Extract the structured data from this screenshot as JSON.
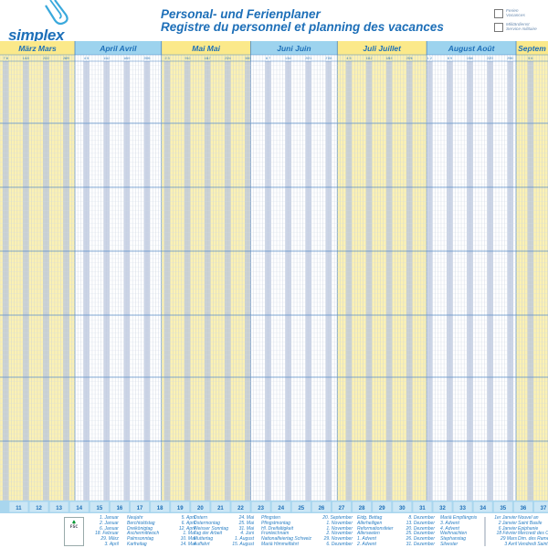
{
  "brand": {
    "name": "simplex",
    "icon": "paperclip-icon"
  },
  "title": {
    "line1": "Personal- und Ferienplaner",
    "line2": "Registre du personnel et planning des vacances"
  },
  "legend": [
    {
      "label1": "Ferien",
      "label2": "Vacances"
    },
    {
      "label1": "Militärdienst",
      "label2": "Service militaire"
    }
  ],
  "colors": {
    "accent": "#1d6fb8",
    "yellow": "#fbf1b4",
    "yellow_header": "#fbe98a",
    "blue_header": "#9dd3ee",
    "weekend": "#b9c6de",
    "week_row": "#a9d6ee"
  },
  "calendar": {
    "year": 2015,
    "months": [
      {
        "label": "März  Mars",
        "color": "yellow",
        "days": [
          "7",
          "8",
          "14",
          "15",
          "21",
          "22",
          "28",
          "29"
        ]
      },
      {
        "label": "April  Avril",
        "color": "white",
        "days": [
          "4",
          "5",
          "11",
          "12",
          "18",
          "19",
          "25",
          "26"
        ]
      },
      {
        "label": "Mai  Mai",
        "color": "yellow",
        "days": [
          "2",
          "3",
          "9",
          "10",
          "16",
          "17",
          "23",
          "24",
          "30",
          "31"
        ]
      },
      {
        "label": "Juni  Juin",
        "color": "white",
        "days": [
          "6",
          "7",
          "13",
          "14",
          "20",
          "21",
          "27",
          "28"
        ]
      },
      {
        "label": "Juli  Juillet",
        "color": "yellow",
        "days": [
          "4",
          "5",
          "11",
          "12",
          "18",
          "19",
          "25",
          "26"
        ]
      },
      {
        "label": "August  Août",
        "color": "white",
        "days": [
          "1",
          "2",
          "8",
          "9",
          "15",
          "16",
          "22",
          "23",
          "29",
          "30"
        ]
      },
      {
        "label": "Septem",
        "color": "yellow",
        "days": [
          "5",
          "6"
        ]
      }
    ],
    "weeks": [
      "11",
      "12",
      "13",
      "14",
      "15",
      "16",
      "17",
      "18",
      "19",
      "20",
      "21",
      "22",
      "23",
      "24",
      "25",
      "26",
      "27",
      "28",
      "29",
      "30",
      "31",
      "32",
      "33",
      "34",
      "35",
      "36",
      "37"
    ]
  },
  "fsc": {
    "logo_text": "FSC"
  },
  "holidays": {
    "col1_dates": [
      "1. Januar",
      "2. Januar",
      "6. Januar",
      "18. Februar",
      "29. März",
      "3. April"
    ],
    "col1_names": [
      "Neujahr",
      "Berchtoldstag",
      "Dreikönigtag",
      "Aschermittwoch",
      "Palmsonntag",
      "Karfreitag"
    ],
    "col2_dates": [
      "5. April",
      "6. April",
      "12. April",
      "1. Mai",
      "10. Mai",
      "14. Mai"
    ],
    "col2_names": [
      "Ostern",
      "Ostermontag",
      "Weisser Sonntag",
      "Tag der Arbeit",
      "Muttertag",
      "Auffahrt"
    ],
    "col3_dates": [
      "24. Mai",
      "25. Mai",
      "31. Mai",
      "4. Juni",
      "1. August",
      "15. August"
    ],
    "col3_names": [
      "Pfingsten",
      "Pfingstmontag",
      "Hl. Dreifaltigkeit",
      "Fronleichnam",
      "Nationalfeiertag Schweiz",
      "Mariä Himmelfahrt"
    ],
    "col4_dates": [
      "20. September",
      "1. November",
      "1. November",
      "2. November",
      "29. November",
      "6. Dezember"
    ],
    "col4_names": [
      "Eidg. Bettag",
      "Allerheiligen",
      "Reformationsfeier",
      "Allerseelen",
      "1. Advent",
      "2. Advent"
    ],
    "col5_dates": [
      "8. Dezember",
      "13. Dezember",
      "20. Dezember",
      "25. Dezember",
      "26. Dezember",
      "31. Dezember"
    ],
    "col5_names": [
      "Mariä Empfängnis",
      "3. Advent",
      "4. Advent",
      "Weihnachten",
      "Stephanstag",
      "Silvester"
    ],
    "col6_dates": [
      "1er Janvier",
      "2 Janvier",
      "6 Janvier",
      "18 Février",
      "29 Mars",
      "3 Avril"
    ],
    "col6_names": [
      "Nouvel an",
      "Saint Basile",
      "Epiphanie",
      "Mercredi des Cendres",
      "Dim. des Rameaux",
      "Vendredi Saint"
    ]
  }
}
